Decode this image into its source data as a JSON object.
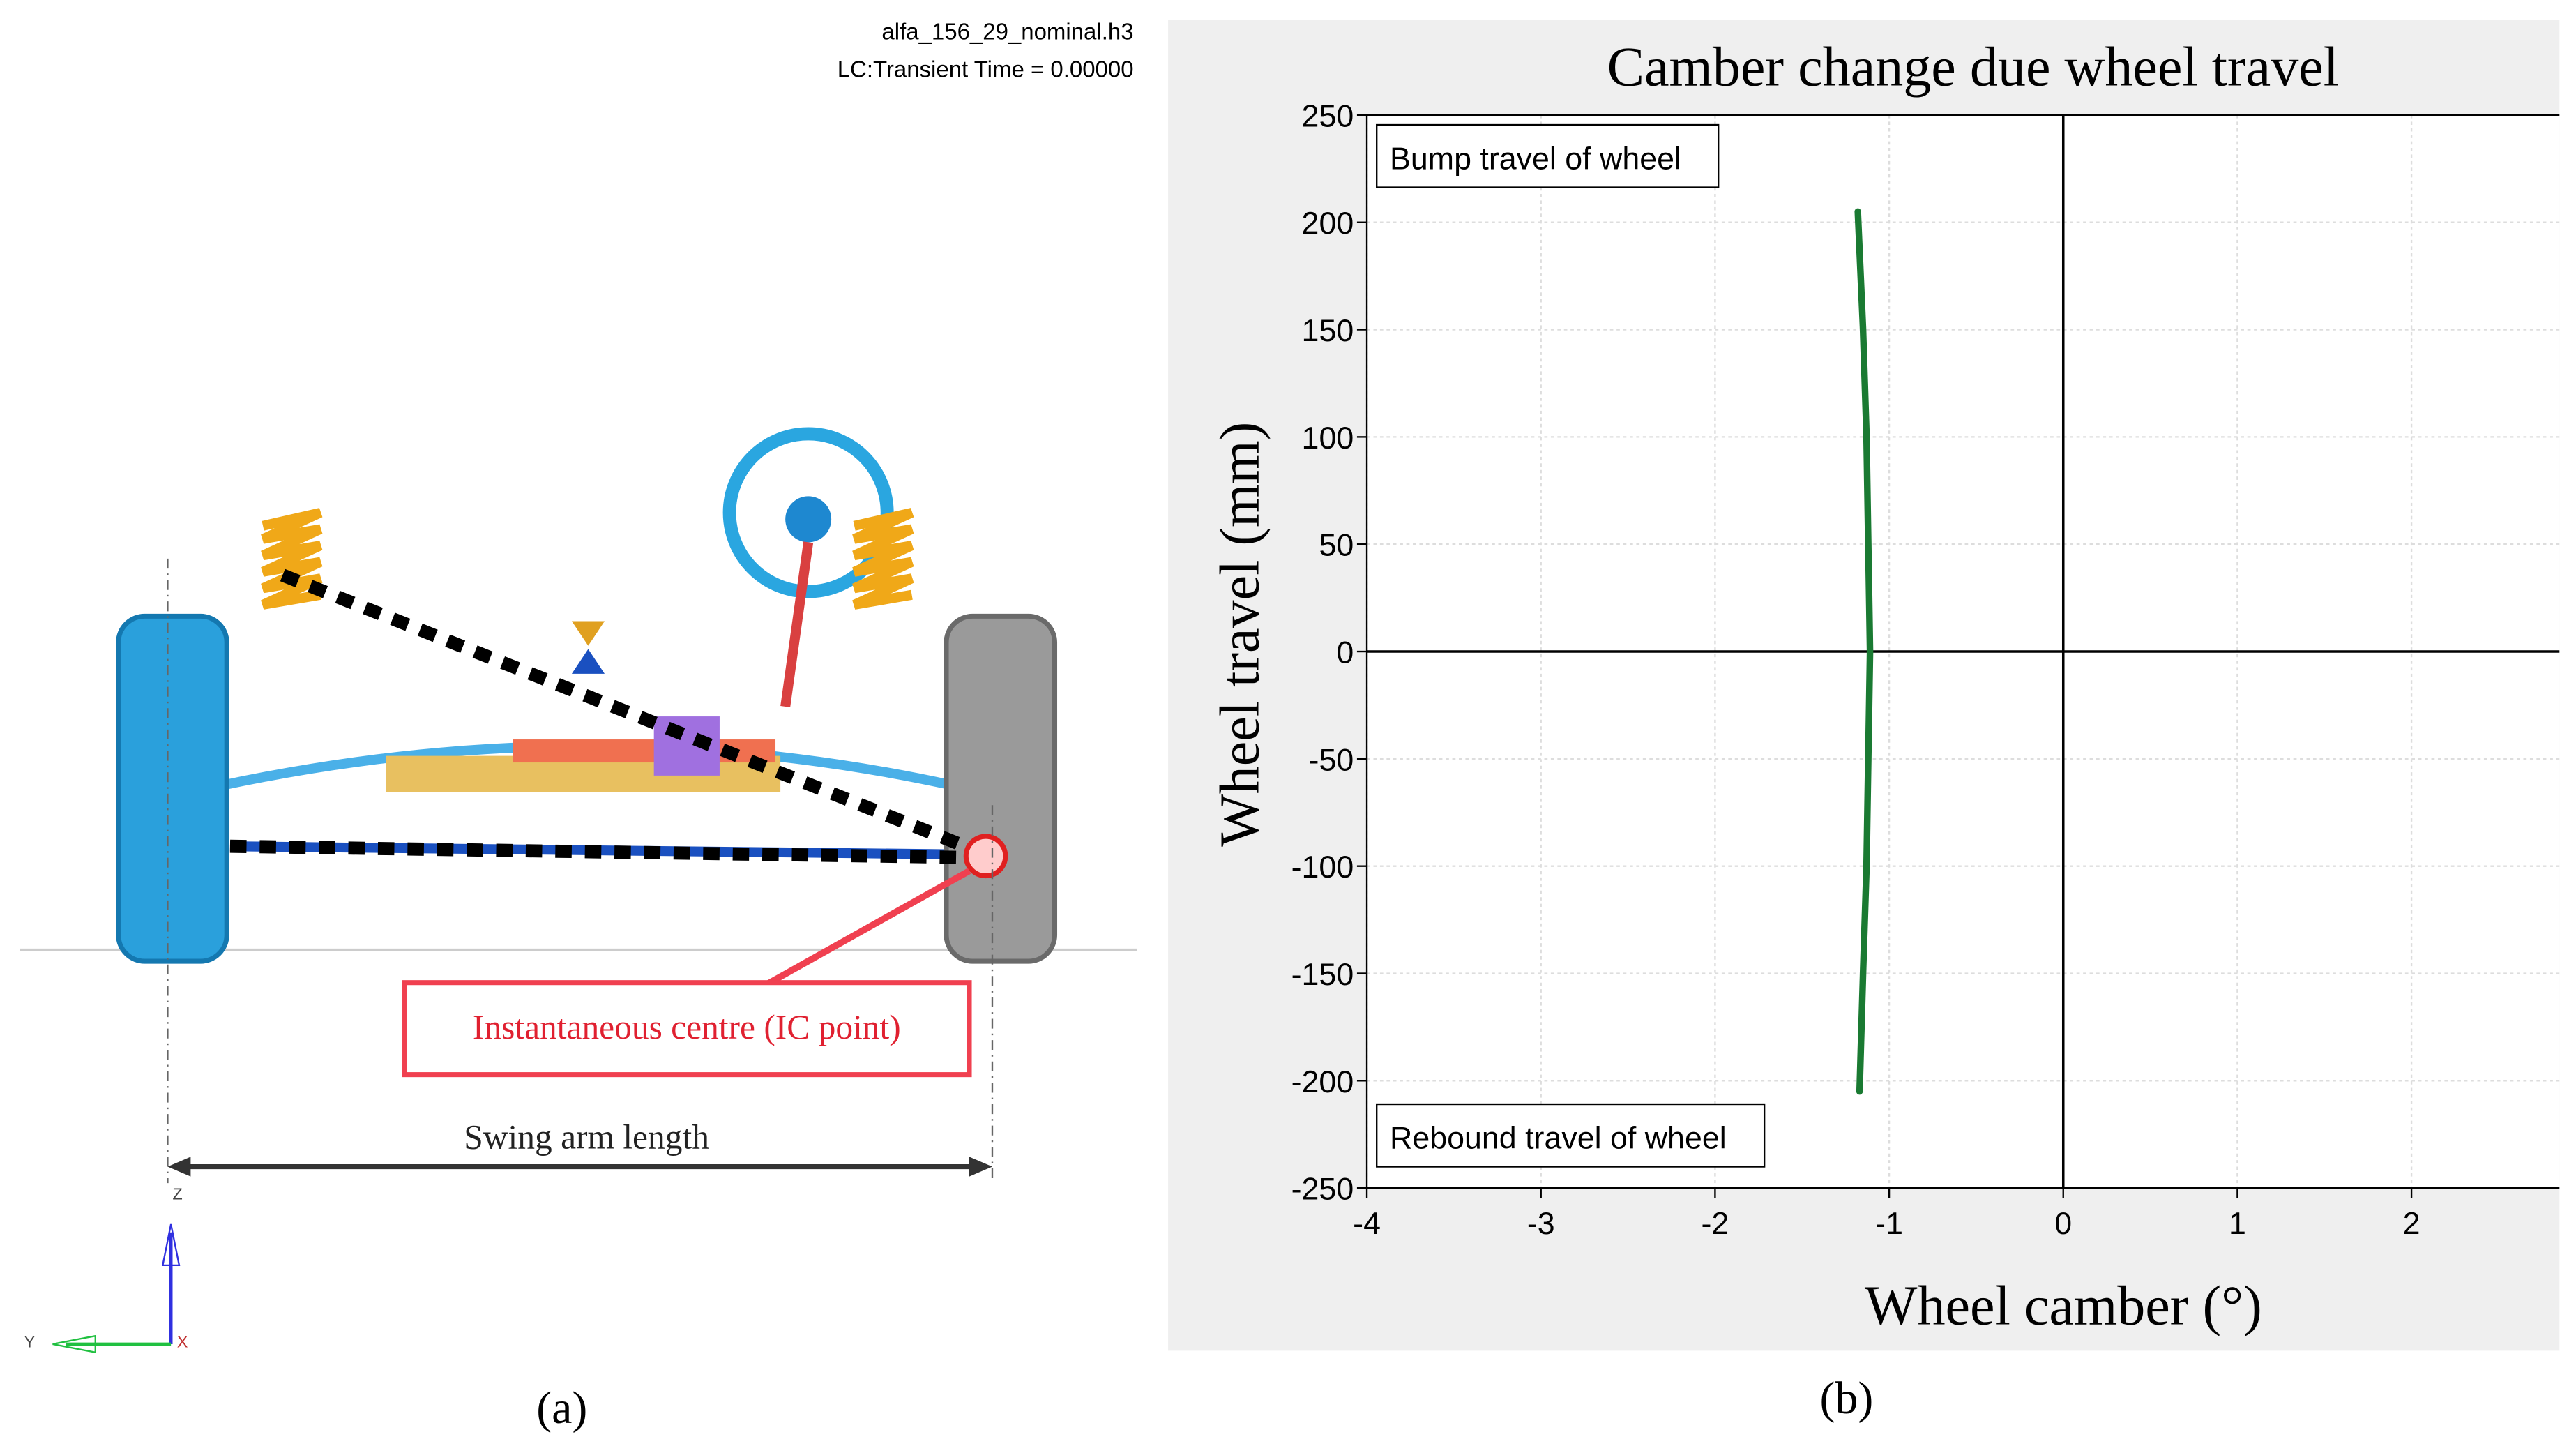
{
  "panel_a": {
    "file_name": "alfa_156_29_nominal.h3",
    "load_case": "LC:Transient Time = 0.00000",
    "ic_label": "Instantaneous centre (IC point)",
    "swing_arm_label": "Swing arm length",
    "axis_z": "Z",
    "axis_y": "Y",
    "axis_x": "X",
    "caption": "(a)"
  },
  "panel_b_caption": "(b)",
  "chart_data": {
    "type": "line",
    "title": "Camber change due wheel travel",
    "xlabel": "Wheel camber (°)",
    "ylabel": "Wheel travel (mm)",
    "annotations": [
      "Bump travel of wheel",
      "Rebound travel of wheel"
    ],
    "x": [
      -1.17,
      -1.15,
      -1.13,
      -1.12,
      -1.11,
      -1.12,
      -1.13,
      -1.15,
      -1.18
    ],
    "series": [
      {
        "name": "Wheel travel",
        "color": "#1a7a32",
        "values": [
          -205,
          -150,
          -100,
          -50,
          0,
          50,
          100,
          150,
          205
        ]
      }
    ],
    "xlim": [
      -4,
      2.85
    ],
    "ylim": [
      -250,
      250
    ],
    "xticks": [
      -4,
      -3,
      -2,
      -1,
      0,
      1,
      2
    ],
    "yticks": [
      -250,
      -200,
      -150,
      -100,
      -50,
      0,
      50,
      100,
      150,
      200,
      250
    ],
    "grid": true
  }
}
